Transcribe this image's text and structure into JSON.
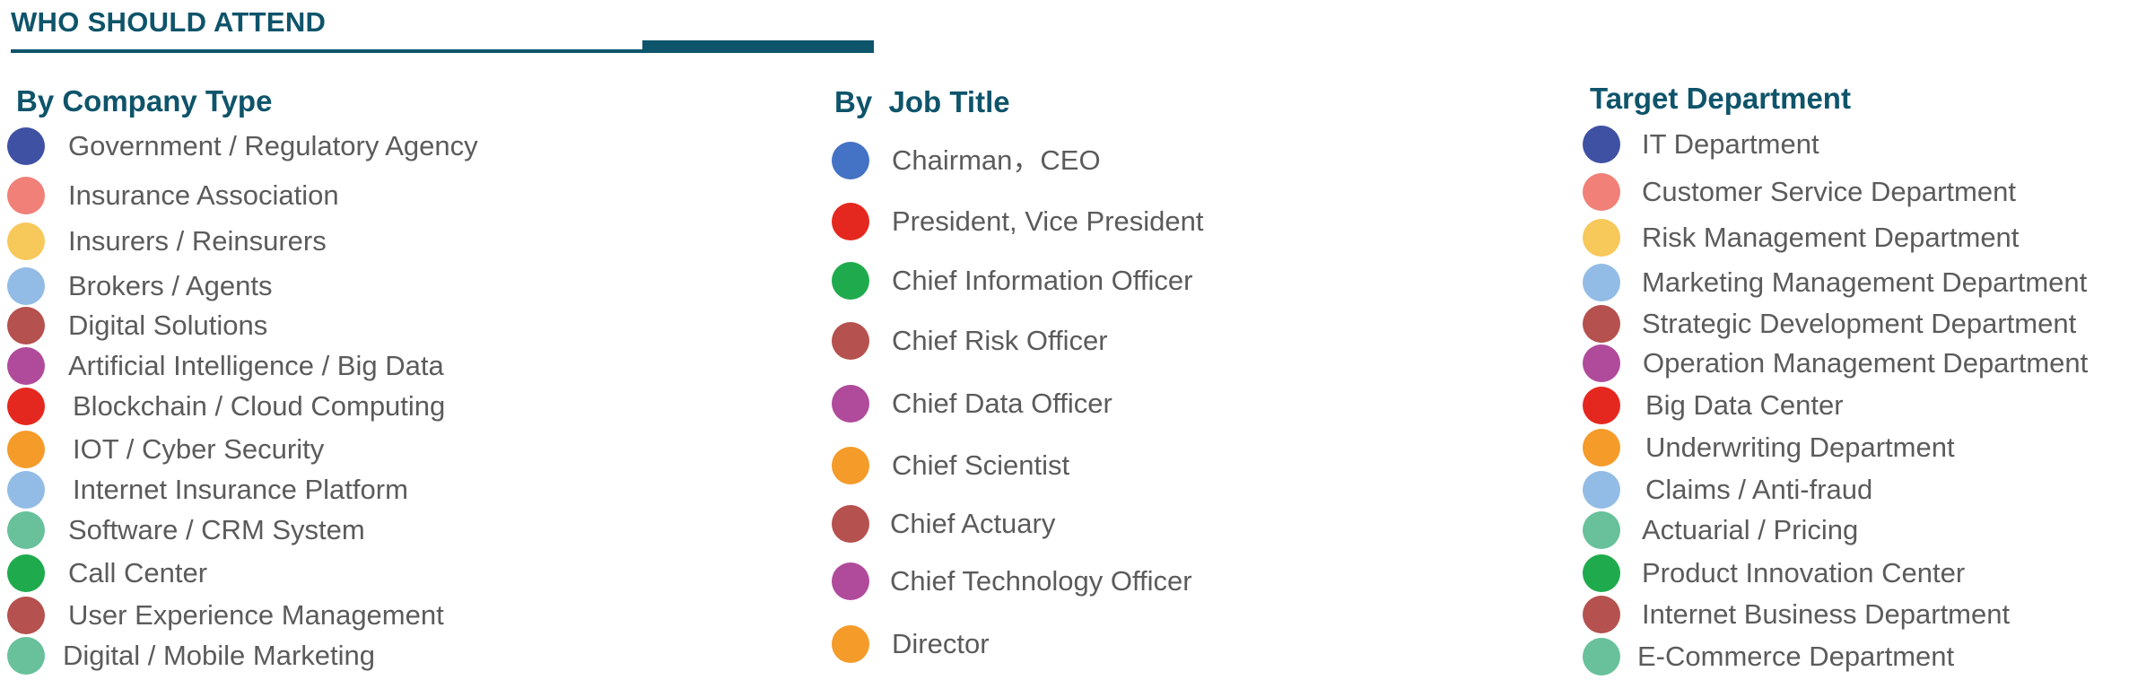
{
  "header": {
    "title": "WHO SHOULD ATTEND"
  },
  "colors": {
    "brand": "#0e546a",
    "navy": "#3f51a3",
    "blue": "#4472c4",
    "salmon": "#f08078",
    "yellow": "#f7c85a",
    "lightblue": "#92bce6",
    "brown": "#b5514e",
    "purple": "#b04b9b",
    "red": "#e5281f",
    "orange": "#f49b2a",
    "teal": "#68c19b",
    "green": "#1fab4d"
  },
  "columns": [
    {
      "heading": "By Company Type",
      "items": [
        {
          "label": "Government / Regulatory Agency",
          "color": "#3f51a3"
        },
        {
          "label": "Insurance Association",
          "color": "#f08078"
        },
        {
          "label": "Insurers / Reinsurers",
          "color": "#f7c85a"
        },
        {
          "label": "Brokers / Agents",
          "color": "#92bce6"
        },
        {
          "label": "Digital Solutions",
          "color": "#b5514e"
        },
        {
          "label": "Artificial Intelligence / Big Data",
          "color": "#b04b9b"
        },
        {
          "label": "Blockchain / Cloud Computing",
          "color": "#e5281f"
        },
        {
          "label": "IOT / Cyber Security",
          "color": "#f49b2a"
        },
        {
          "label": "Internet Insurance Platform",
          "color": "#92bce6"
        },
        {
          "label": "Software / CRM System",
          "color": "#68c19b"
        },
        {
          "label": "Call Center",
          "color": "#1fab4d"
        },
        {
          "label": "User Experience Management",
          "color": "#b5514e"
        },
        {
          "label": "Digital / Mobile Marketing",
          "color": "#68c19b"
        }
      ]
    },
    {
      "heading": "By  Job Title",
      "items": [
        {
          "label": "Chairman，CEO",
          "color": "#4472c4"
        },
        {
          "label": "President, Vice President",
          "color": "#e5281f"
        },
        {
          "label": "Chief Information Officer",
          "color": "#1fab4d"
        },
        {
          "label": "Chief Risk Officer",
          "color": "#b5514e"
        },
        {
          "label": "Chief Data Officer",
          "color": "#b04b9b"
        },
        {
          "label": "Chief Scientist",
          "color": "#f49b2a"
        },
        {
          "label": "Chief Actuary",
          "color": "#b5514e"
        },
        {
          "label": "Chief Technology Officer",
          "color": "#b04b9b"
        },
        {
          "label": "Director",
          "color": "#f49b2a"
        }
      ]
    },
    {
      "heading": "Target Department",
      "items": [
        {
          "label": "IT Department",
          "color": "#3f51a3"
        },
        {
          "label": "Customer Service Department",
          "color": "#f08078"
        },
        {
          "label": "Risk Management Department",
          "color": "#f7c85a"
        },
        {
          "label": "Marketing Management Department",
          "color": "#92bce6"
        },
        {
          "label": "Strategic Development Department",
          "color": "#b5514e"
        },
        {
          "label": "Operation Management Department",
          "color": "#b04b9b"
        },
        {
          "label": "Big Data Center",
          "color": "#e5281f"
        },
        {
          "label": "Underwriting Department",
          "color": "#f49b2a"
        },
        {
          "label": "Claims / Anti-fraud",
          "color": "#92bce6"
        },
        {
          "label": "Actuarial / Pricing",
          "color": "#68c19b"
        },
        {
          "label": "Product Innovation Center",
          "color": "#1fab4d"
        },
        {
          "label": "Internet Business Department",
          "color": "#b5514e"
        },
        {
          "label": "E-Commerce Department",
          "color": "#68c19b"
        }
      ]
    }
  ]
}
